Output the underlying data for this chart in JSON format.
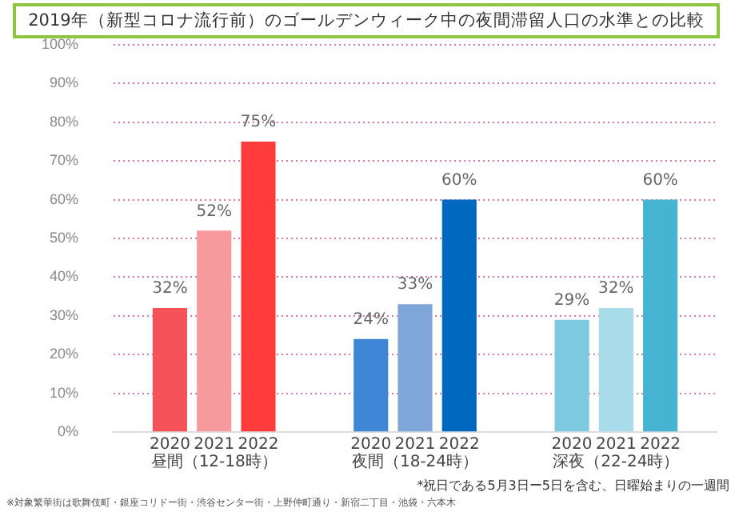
{
  "chart_data": {
    "type": "bar",
    "title": "2019年（新型コロナ流行前）のゴールデンウィーク中の夜間滞留人口の水準との比較",
    "categories": [
      "昼間（12-18時）",
      "夜間（18-24時）",
      "深夜（22-24時）"
    ],
    "series": [
      {
        "name": "2020",
        "colors": [
          "#f5525a",
          "#3f86d6",
          "#7cc9e0"
        ],
        "values": [
          32,
          24,
          29
        ],
        "value_labels": [
          "32%",
          "24%",
          "29%"
        ]
      },
      {
        "name": "2021",
        "colors": [
          "#f79a9e",
          "#7ea6d9",
          "#a9dcea"
        ],
        "values": [
          52,
          33,
          32
        ],
        "value_labels": [
          "52%",
          "33%",
          "32%"
        ]
      },
      {
        "name": "2022",
        "colors": [
          "#ff3b3b",
          "#0068bf",
          "#47b3d3"
        ],
        "values": [
          75,
          60,
          60
        ],
        "value_labels": [
          "75%",
          "60%",
          "60%"
        ]
      }
    ],
    "ylim": [
      0,
      100
    ],
    "yticks": [
      {
        "value": 0,
        "label": "0%"
      },
      {
        "value": 10,
        "label": "10%"
      },
      {
        "value": 20,
        "label": "20%"
      },
      {
        "value": 30,
        "label": "30%"
      },
      {
        "value": 40,
        "label": "40%"
      },
      {
        "value": 50,
        "label": "50%"
      },
      {
        "value": 60,
        "label": "60%"
      },
      {
        "value": 70,
        "label": "70%"
      },
      {
        "value": 80,
        "label": "80%"
      },
      {
        "value": 90,
        "label": "90%"
      },
      {
        "value": 100,
        "label": "100%"
      }
    ],
    "grid": "y",
    "legend": false,
    "annotations": [
      "*祝日である5月3日ー5日を含む、日曜始まりの一週間",
      "※対象繁華街は歌舞伎町・銀座コリドー街・渋谷センター街・上野仲町通り・新宿二丁目・池袋・六本木"
    ]
  }
}
